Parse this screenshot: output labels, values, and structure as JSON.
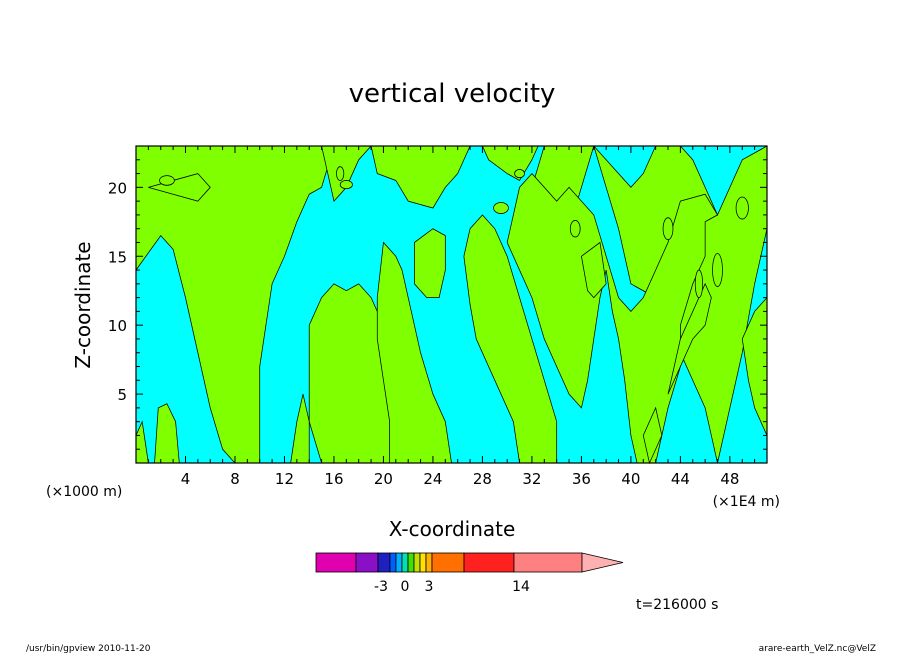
{
  "chart_data": {
    "type": "heatmap",
    "title": "vertical velocity",
    "xlabel": "X-coordinate",
    "ylabel": "Z-coordinate",
    "x_unit_left": "(×1000 m)",
    "x_unit_right": "(×1E4 m)",
    "xlim": [
      0,
      51
    ],
    "ylim": [
      0,
      23
    ],
    "x_ticks": [
      "4",
      "8",
      "12",
      "16",
      "20",
      "24",
      "28",
      "32",
      "36",
      "40",
      "44",
      "48"
    ],
    "y_ticks": [
      "5",
      "10",
      "15",
      "20"
    ],
    "colors": {
      "negative": "#00ffff",
      "positive": "#80ff00"
    },
    "regions_note": "cyan = w < 0, green = w > 0",
    "colorbar": {
      "labels": [
        "-3",
        "0",
        "3",
        "14"
      ],
      "colors": [
        "#e000b0",
        "#8a10c8",
        "#2020c0",
        "#0060ff",
        "#00b0ff",
        "#00e0b0",
        "#40e000",
        "#c0e000",
        "#ffe000",
        "#ffb000",
        "#ff7000",
        "#ff2020",
        "#ff8080",
        "#ffb0b0"
      ]
    },
    "time_label": "t=216000 s"
  },
  "footer": {
    "left": "/usr/bin/gpview   2010-11-20",
    "right": "arare-earth_VelZ.nc@VelZ"
  }
}
